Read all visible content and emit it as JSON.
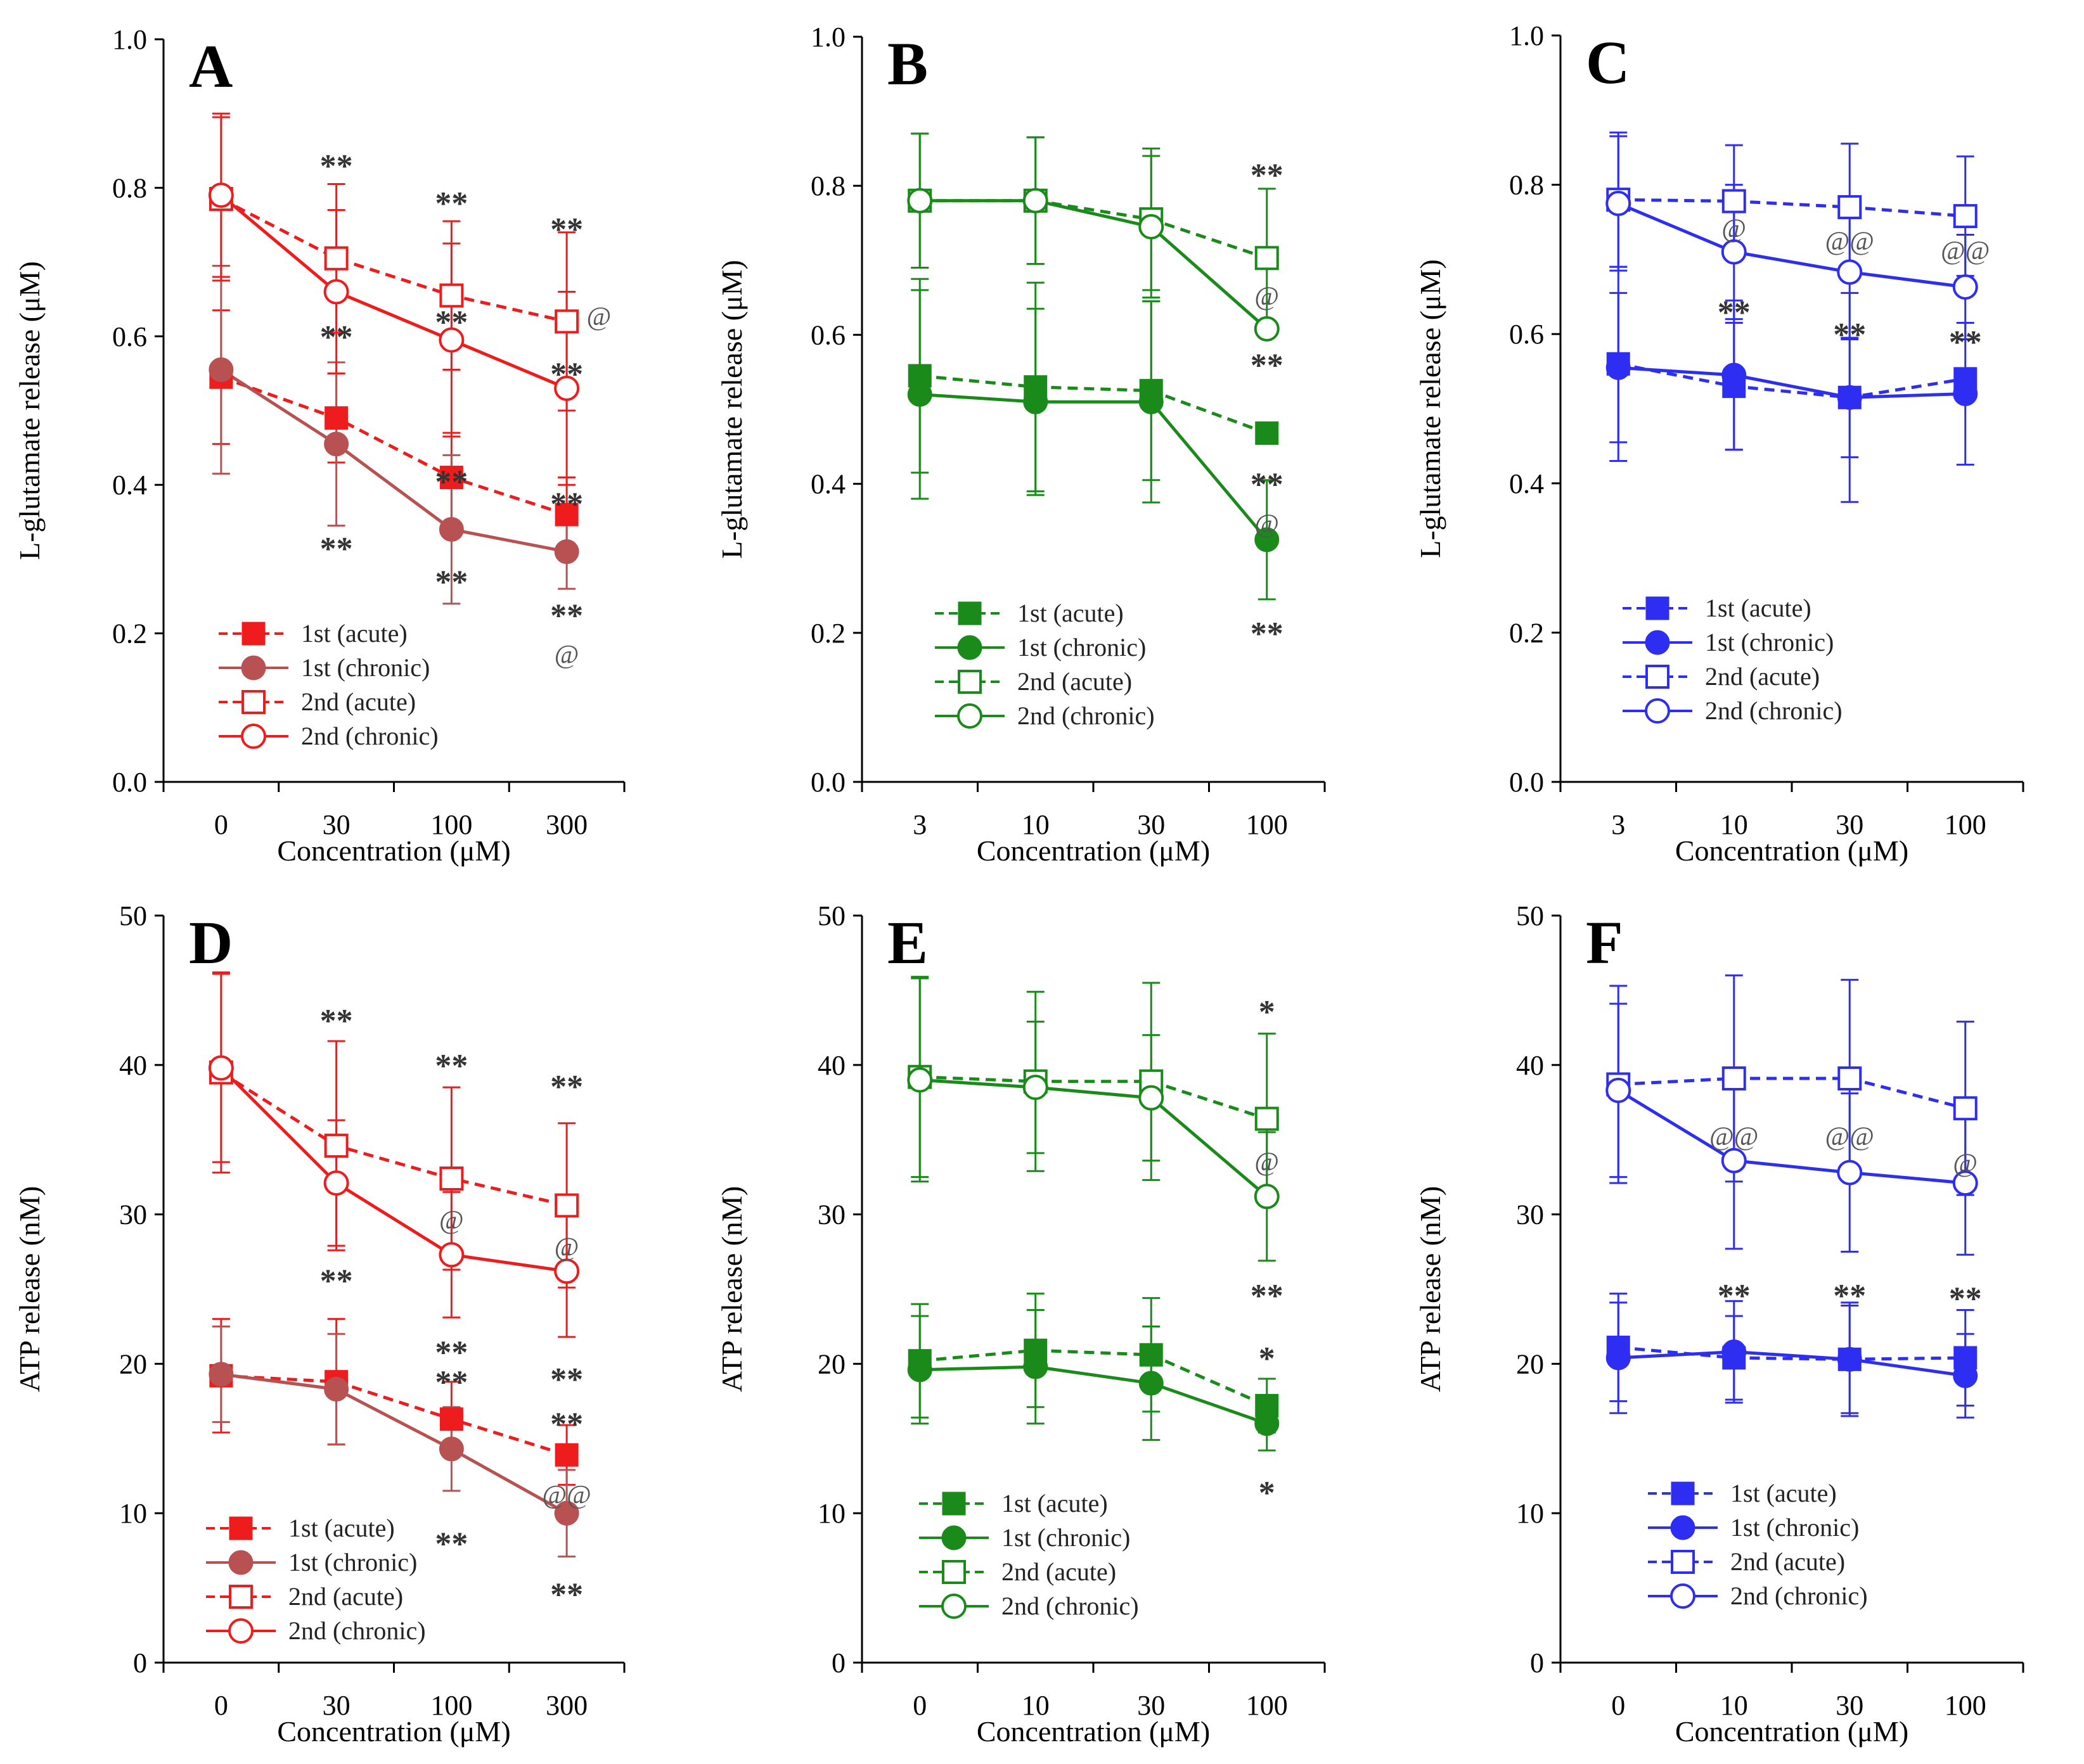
{
  "chart_data": [
    {
      "panel": "A",
      "type": "line",
      "categories": [
        "0",
        "30",
        "100",
        "300"
      ],
      "xlabel": "Concentration (μM)",
      "ylabel": "L-glutamate release (μM)",
      "ylim": [
        0,
        1.0
      ],
      "yticks": [
        "0.0",
        "0.2",
        "0.4",
        "0.6",
        "0.8",
        "1.0"
      ],
      "color": "#ee1c1c",
      "chronic1_color": "#b85252",
      "series": [
        {
          "name": "1st (acute)",
          "marker": "filled-square",
          "dash": true,
          "values": [
            0.545,
            0.49,
            0.41,
            0.36
          ],
          "err": [
            0.09,
            0.06,
            0.06,
            0.05
          ]
        },
        {
          "name": "1st (chronic)",
          "marker": "filled-circle",
          "dash": false,
          "values": [
            0.555,
            0.455,
            0.34,
            0.31
          ],
          "err": [
            0.14,
            0.11,
            0.1,
            0.05
          ]
        },
        {
          "name": "2nd (acute)",
          "marker": "open-square",
          "dash": true,
          "values": [
            0.785,
            0.705,
            0.655,
            0.62
          ],
          "err": [
            0.11,
            0.1,
            0.1,
            0.12
          ]
        },
        {
          "name": "2nd (chronic)",
          "marker": "open-circle",
          "dash": false,
          "values": [
            0.79,
            0.66,
            0.595,
            0.53
          ],
          "err": [
            0.11,
            0.11,
            0.13,
            0.13
          ]
        }
      ],
      "annotations": [
        {
          "text": "**",
          "x": 1,
          "y": 0.83
        },
        {
          "text": "**",
          "x": 2,
          "y": 0.78
        },
        {
          "text": "**",
          "x": 3,
          "y": 0.745
        },
        {
          "text": "@",
          "x": 3.28,
          "y": 0.63
        },
        {
          "text": "**",
          "x": 1,
          "y": 0.6
        },
        {
          "text": "**",
          "x": 2,
          "y": 0.62
        },
        {
          "text": "**",
          "x": 3,
          "y": 0.55
        },
        {
          "text": "**",
          "x": 2,
          "y": 0.405
        },
        {
          "text": "**",
          "x": 3,
          "y": 0.375
        },
        {
          "text": "**",
          "x": 1,
          "y": 0.315
        },
        {
          "text": "**",
          "x": 2,
          "y": 0.27
        },
        {
          "text": "**",
          "x": 3,
          "y": 0.225
        },
        {
          "text": "@",
          "x": 3,
          "y": 0.175
        }
      ]
    },
    {
      "panel": "B",
      "type": "line",
      "categories": [
        "3",
        "10",
        "30",
        "100"
      ],
      "xlabel": "Concentration (μM)",
      "ylabel": "L-glutamate release (μM)",
      "ylim": [
        0,
        1.0
      ],
      "yticks": [
        "0.0",
        "0.2",
        "0.4",
        "0.6",
        "0.8",
        "1.0"
      ],
      "color": "#1a8a1a",
      "series": [
        {
          "name": "1st (acute)",
          "marker": "filled-square",
          "dash": true,
          "values": [
            0.545,
            0.53,
            0.525,
            0.468
          ],
          "err": [
            0.13,
            0.14,
            0.12,
            0.0
          ]
        },
        {
          "name": "1st (chronic)",
          "marker": "filled-circle",
          "dash": false,
          "values": [
            0.52,
            0.51,
            0.51,
            0.325
          ],
          "err": [
            0.14,
            0.125,
            0.135,
            0.08
          ]
        },
        {
          "name": "2nd (acute)",
          "marker": "open-square",
          "dash": true,
          "values": [
            0.78,
            0.78,
            0.755,
            0.703
          ],
          "err": [
            0.09,
            0.085,
            0.095,
            0.093
          ]
        },
        {
          "name": "2nd (chronic)",
          "marker": "open-circle",
          "dash": false,
          "values": [
            0.78,
            0.78,
            0.745,
            0.608
          ],
          "err": [
            0.09,
            0.085,
            0.095,
            0.0
          ]
        }
      ],
      "annotations": [
        {
          "text": "**",
          "x": 3,
          "y": 0.815
        },
        {
          "text": "@",
          "x": 3,
          "y": 0.655
        },
        {
          "text": "**",
          "x": 3,
          "y": 0.56
        },
        {
          "text": "**",
          "x": 3,
          "y": 0.4
        },
        {
          "text": "@",
          "x": 3,
          "y": 0.35
        },
        {
          "text": "**",
          "x": 3,
          "y": 0.2
        }
      ]
    },
    {
      "panel": "C",
      "type": "line",
      "categories": [
        "3",
        "10",
        "30",
        "100"
      ],
      "xlabel": "Concentration (μM)",
      "ylabel": "L-glutamate release (μM)",
      "ylim": [
        0,
        1.0
      ],
      "yticks": [
        "0.0",
        "0.2",
        "0.4",
        "0.6",
        "0.8",
        "1.0"
      ],
      "color": "#2e2ef2",
      "series": [
        {
          "name": "1st (acute)",
          "marker": "filled-square",
          "dash": true,
          "values": [
            0.56,
            0.53,
            0.515,
            0.54
          ],
          "err": [
            0.13,
            0.085,
            0.08,
            0.0
          ]
        },
        {
          "name": "1st (chronic)",
          "marker": "filled-circle",
          "dash": false,
          "values": [
            0.555,
            0.545,
            0.515,
            0.52
          ],
          "err": [
            0.1,
            0.1,
            0.14,
            0.095
          ]
        },
        {
          "name": "2nd (acute)",
          "marker": "open-square",
          "dash": true,
          "values": [
            0.78,
            0.778,
            0.77,
            0.758
          ],
          "err": [
            0.09,
            0.075,
            0.085,
            0.08
          ]
        },
        {
          "name": "2nd (chronic)",
          "marker": "open-circle",
          "dash": false,
          "values": [
            0.775,
            0.71,
            0.683,
            0.663
          ],
          "err": [
            0.09,
            0.09,
            0.09,
            0.07
          ]
        }
      ],
      "annotations": [
        {
          "text": "@",
          "x": 1,
          "y": 0.745
        },
        {
          "text": "@@",
          "x": 2,
          "y": 0.728
        },
        {
          "text": "@@",
          "x": 3,
          "y": 0.715
        },
        {
          "text": "**",
          "x": 1,
          "y": 0.63
        },
        {
          "text": "**",
          "x": 2,
          "y": 0.6
        },
        {
          "text": "**",
          "x": 3,
          "y": 0.59
        }
      ]
    },
    {
      "panel": "D",
      "type": "line",
      "categories": [
        "0",
        "30",
        "100",
        "300"
      ],
      "xlabel": "Concentration (μM)",
      "ylabel": "ATP release (nM)",
      "ylim": [
        0,
        50
      ],
      "yticks": [
        "0",
        "10",
        "20",
        "30",
        "40",
        "50"
      ],
      "color": "#ee1c1c",
      "chronic1_color": "#b85252",
      "series": [
        {
          "name": "1st (acute)",
          "marker": "filled-square",
          "dash": true,
          "values": [
            19.2,
            18.8,
            16.3,
            13.9
          ],
          "err": [
            3.8,
            4.2,
            2.5,
            2.0
          ]
        },
        {
          "name": "1st (chronic)",
          "marker": "filled-circle",
          "dash": false,
          "values": [
            19.3,
            18.3,
            14.3,
            10.0
          ],
          "err": [
            3.2,
            3.7,
            2.8,
            2.9
          ]
        },
        {
          "name": "2nd (acute)",
          "marker": "open-square",
          "dash": true,
          "values": [
            39.5,
            34.6,
            32.4,
            30.6
          ],
          "err": [
            6.7,
            7.0,
            6.1,
            5.5
          ]
        },
        {
          "name": "2nd (chronic)",
          "marker": "open-circle",
          "dash": false,
          "values": [
            39.8,
            32.1,
            27.3,
            26.2
          ],
          "err": [
            6.3,
            4.2,
            4.2,
            4.4
          ]
        }
      ],
      "annotations": [
        {
          "text": "**",
          "x": 1,
          "y": 43.0
        },
        {
          "text": "**",
          "x": 2,
          "y": 40.0
        },
        {
          "text": "**",
          "x": 3,
          "y": 38.6
        },
        {
          "text": "@",
          "x": 2,
          "y": 29.8
        },
        {
          "text": "@",
          "x": 3,
          "y": 28.0
        },
        {
          "text": "**",
          "x": 1,
          "y": 25.6
        },
        {
          "text": "**",
          "x": 2,
          "y": 20.8
        },
        {
          "text": "**",
          "x": 2,
          "y": 18.8
        },
        {
          "text": "**",
          "x": 3,
          "y": 19.0
        },
        {
          "text": "**",
          "x": 3,
          "y": 16.0
        },
        {
          "text": "@@",
          "x": 3,
          "y": 11.4
        },
        {
          "text": "**",
          "x": 2,
          "y": 8.0
        },
        {
          "text": "**",
          "x": 3,
          "y": 4.6
        }
      ]
    },
    {
      "panel": "E",
      "type": "line",
      "categories": [
        "0",
        "10",
        "30",
        "100"
      ],
      "xlabel": "Concentration (μM)",
      "ylabel": "ATP release (nM)",
      "ylim": [
        0,
        50
      ],
      "yticks": [
        "0",
        "10",
        "20",
        "30",
        "40",
        "50"
      ],
      "color": "#1a8a1a",
      "series": [
        {
          "name": "1st (acute)",
          "marker": "filled-square",
          "dash": true,
          "values": [
            20.2,
            20.9,
            20.6,
            17.2
          ],
          "err": [
            3.8,
            3.8,
            3.8,
            1.8
          ]
        },
        {
          "name": "1st (chronic)",
          "marker": "filled-circle",
          "dash": false,
          "values": [
            19.6,
            19.8,
            18.7,
            16.0
          ],
          "err": [
            3.6,
            3.8,
            3.8,
            1.8
          ]
        },
        {
          "name": "2nd (acute)",
          "marker": "open-square",
          "dash": true,
          "values": [
            39.2,
            38.9,
            38.9,
            36.4
          ],
          "err": [
            6.7,
            6.0,
            6.6,
            5.7
          ]
        },
        {
          "name": "2nd (chronic)",
          "marker": "open-circle",
          "dash": false,
          "values": [
            39.0,
            38.5,
            37.8,
            31.2
          ],
          "err": [
            6.8,
            4.4,
            4.2,
            4.3
          ]
        }
      ],
      "annotations": [
        {
          "text": "*",
          "x": 3,
          "y": 43.6
        },
        {
          "text": "@",
          "x": 3,
          "y": 33.7
        },
        {
          "text": "**",
          "x": 3,
          "y": 24.6
        },
        {
          "text": "*",
          "x": 3,
          "y": 20.4
        },
        {
          "text": "*",
          "x": 3,
          "y": 11.4
        }
      ]
    },
    {
      "panel": "F",
      "type": "line",
      "categories": [
        "0",
        "10",
        "30",
        "100"
      ],
      "xlabel": "Concentration (μM)",
      "ylabel": "ATP release (nM)",
      "ylim": [
        0,
        50
      ],
      "yticks": [
        "0",
        "10",
        "20",
        "30",
        "40",
        "50"
      ],
      "color": "#2e2ef2",
      "series": [
        {
          "name": "1st (acute)",
          "marker": "filled-square",
          "dash": true,
          "values": [
            21.1,
            20.4,
            20.3,
            20.4
          ],
          "err": [
            3.6,
            2.8,
            3.6,
            3.2
          ]
        },
        {
          "name": "1st (chronic)",
          "marker": "filled-circle",
          "dash": false,
          "values": [
            20.4,
            20.8,
            20.3,
            19.2
          ],
          "err": [
            3.7,
            3.4,
            3.8,
            2.8
          ]
        },
        {
          "name": "2nd (acute)",
          "marker": "open-square",
          "dash": true,
          "values": [
            38.7,
            39.1,
            39.1,
            37.1
          ],
          "err": [
            6.6,
            6.9,
            6.6,
            5.8
          ]
        },
        {
          "name": "2nd (chronic)",
          "marker": "open-circle",
          "dash": false,
          "values": [
            38.3,
            33.6,
            32.8,
            32.1
          ],
          "err": [
            5.8,
            5.9,
            5.3,
            4.8
          ]
        }
      ],
      "annotations": [
        {
          "text": "@@",
          "x": 1,
          "y": 35.4
        },
        {
          "text": "@@",
          "x": 2,
          "y": 35.4
        },
        {
          "text": "@",
          "x": 3,
          "y": 33.6
        },
        {
          "text": "**",
          "x": 1,
          "y": 24.6
        },
        {
          "text": "**",
          "x": 2,
          "y": 24.6
        },
        {
          "text": "**",
          "x": 3,
          "y": 24.4
        }
      ]
    }
  ]
}
